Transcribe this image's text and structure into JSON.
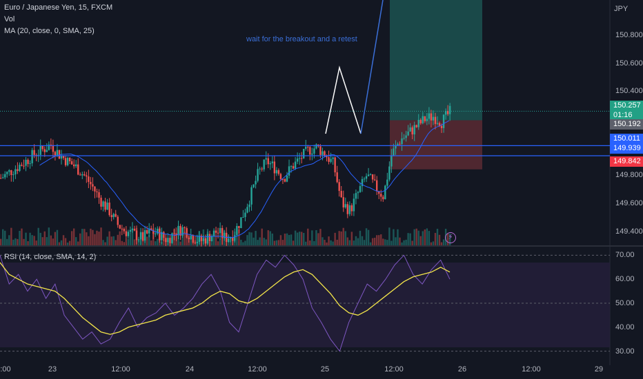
{
  "legend": {
    "symbol_line": "Euro / Japanese Yen, 15, FXCM",
    "vol": "Vol",
    "ma": "MA (20, close, 0, SMA, 25)",
    "rsi": "RSI (14, close, SMA, 14, 2)"
  },
  "currency": "JPY",
  "annotation": "wait for the breakout and a retest",
  "badges": {
    "last_price": "150.257",
    "countdown": "01:16",
    "ma_value": "150.192",
    "resistance_top": "150.011",
    "resistance_bottom": "149.939",
    "stop_loss": "149.842"
  },
  "colors": {
    "background": "#131722",
    "up": "#26a69a",
    "down": "#ef5350",
    "ma": "#2962ff",
    "hline": "#2962ff",
    "rsi": "#7e57c2",
    "rsi_ma": "#f4e64a",
    "target_zone": "#1e5b57",
    "stop_zone": "#5b2a33"
  },
  "chart_data": [
    {
      "type": "candlestick",
      "title": "Euro / Japanese Yen, 15, FXCM",
      "y_ticks": [
        "150.800",
        "150.600",
        "150.400",
        "149.800",
        "149.600",
        "149.400"
      ],
      "ylim": [
        149.3,
        151.05
      ],
      "x_ticks": [
        ":00",
        "23",
        "12:00",
        "24",
        "12:00",
        "25",
        "12:00",
        "26",
        "12:00",
        "29"
      ],
      "horizontal_lines": [
        150.011,
        149.939
      ],
      "current_price": 150.257,
      "long_position": {
        "entry": 150.192,
        "stop": 149.842,
        "target_top": 151.05
      },
      "ohlc_sketch_closes": [
        149.78,
        149.82,
        149.86,
        149.9,
        149.95,
        149.98,
        150.02,
        149.95,
        149.9,
        149.86,
        149.8,
        149.72,
        149.62,
        149.55,
        149.45,
        149.4,
        149.38,
        149.35,
        149.4,
        149.38,
        149.34,
        149.4,
        149.42,
        149.36,
        149.33,
        149.36,
        149.4,
        149.35,
        149.38,
        149.5,
        149.65,
        149.82,
        149.9,
        149.85,
        149.78,
        149.86,
        149.92,
        149.98,
        150.0,
        149.95,
        149.88,
        149.6,
        149.55,
        149.68,
        149.8,
        149.72,
        149.65,
        149.95,
        150.05,
        150.1,
        150.15,
        150.2,
        150.22,
        150.18,
        150.25
      ]
    },
    {
      "type": "line",
      "title": "RSI (14, close, SMA, 14, 2)",
      "y_ticks": [
        "70.00",
        "60.00",
        "50.00",
        "40.00",
        "30.00"
      ],
      "ylim": [
        27,
        73
      ],
      "reference_lines": [
        70,
        50,
        30
      ],
      "series": [
        {
          "name": "RSI",
          "values": [
            70,
            58,
            62,
            55,
            60,
            52,
            58,
            45,
            40,
            35,
            38,
            33,
            35,
            42,
            48,
            40,
            44,
            46,
            50,
            45,
            48,
            52,
            58,
            62,
            55,
            42,
            38,
            50,
            62,
            68,
            65,
            70,
            66,
            60,
            48,
            42,
            35,
            30,
            42,
            50,
            58,
            55,
            60,
            66,
            70,
            62,
            58,
            64,
            68,
            60
          ]
        },
        {
          "name": "RSI-based MA",
          "values": [
            67,
            62,
            60,
            58,
            57,
            56,
            55,
            52,
            48,
            44,
            41,
            38,
            37,
            38,
            40,
            41,
            42,
            43,
            45,
            46,
            47,
            48,
            50,
            53,
            55,
            54,
            51,
            50,
            52,
            55,
            58,
            61,
            63,
            64,
            62,
            58,
            54,
            49,
            46,
            45,
            47,
            50,
            53,
            56,
            59,
            61,
            62,
            63,
            65,
            63
          ]
        }
      ]
    }
  ]
}
